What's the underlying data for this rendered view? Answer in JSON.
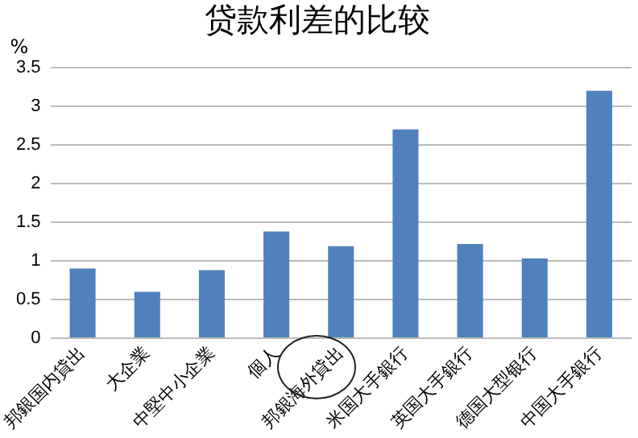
{
  "chart_data": {
    "type": "bar",
    "title": "贷款利差的比较",
    "ylabel": "%",
    "categories": [
      "邦銀国内貸出",
      "大企業",
      "中堅中小企業",
      "個人",
      "邦銀海外貸出",
      "米国大手銀行",
      "英国大手銀行",
      "德国大型银行",
      "中国大手銀行"
    ],
    "values": [
      0.9,
      0.6,
      0.88,
      1.38,
      1.19,
      2.7,
      1.22,
      1.03,
      3.2
    ],
    "color": "#4f81bd",
    "ylim": [
      0,
      3.5
    ],
    "yticks": [
      0,
      0.5,
      1,
      1.5,
      2,
      2.5,
      3,
      3.5
    ],
    "grid": "y",
    "legend": false
  }
}
